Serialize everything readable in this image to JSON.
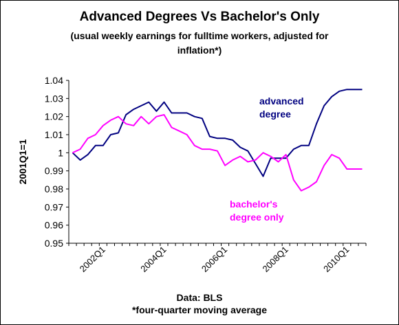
{
  "chart_data": {
    "type": "line",
    "title": "Advanced Degrees Vs Bachelor's Only",
    "subtitle_line1": "(usual weekly earnings for fulltime workers, adjusted for",
    "subtitle_line2": "inflation*)",
    "ylabel": "2001Q1=1",
    "ylim": [
      0.95,
      1.04
    ],
    "yticks": [
      "0.95",
      "0.96",
      "0.97",
      "0.98",
      "0.99",
      "1",
      "1.01",
      "1.02",
      "1.03",
      "1.04"
    ],
    "x": [
      "2001Q1",
      "2001Q2",
      "2001Q3",
      "2001Q4",
      "2002Q1",
      "2002Q2",
      "2002Q3",
      "2002Q4",
      "2003Q1",
      "2003Q2",
      "2003Q3",
      "2003Q4",
      "2004Q1",
      "2004Q2",
      "2004Q3",
      "2004Q4",
      "2005Q1",
      "2005Q2",
      "2005Q3",
      "2005Q4",
      "2006Q1",
      "2006Q2",
      "2006Q3",
      "2006Q4",
      "2007Q1",
      "2007Q2",
      "2007Q3",
      "2007Q4",
      "2008Q1",
      "2008Q2",
      "2008Q3",
      "2008Q4",
      "2009Q1",
      "2009Q2",
      "2009Q3",
      "2009Q4",
      "2010Q1",
      "2010Q2",
      "2010Q3"
    ],
    "xticks": [
      "2002Q1",
      "2004Q1",
      "2006Q1",
      "2008Q1",
      "2010Q1"
    ],
    "series": [
      {
        "name": "advanced degree",
        "label_lines": [
          "advanced",
          "degree"
        ],
        "color": "#000080",
        "values": [
          1.0,
          0.996,
          0.999,
          1.004,
          1.004,
          1.01,
          1.011,
          1.021,
          1.024,
          1.026,
          1.028,
          1.023,
          1.028,
          1.022,
          1.022,
          1.022,
          1.02,
          1.019,
          1.009,
          1.008,
          1.008,
          1.007,
          1.003,
          1.001,
          0.994,
          0.987,
          0.997,
          0.997,
          0.997,
          1.002,
          1.004,
          1.004,
          1.016,
          1.026,
          1.031,
          1.034,
          1.035,
          1.035,
          1.035
        ]
      },
      {
        "name": "bachelor's degree only",
        "label_lines": [
          "bachelor's",
          "degree only"
        ],
        "color": "#ff00ff",
        "values": [
          1.0,
          1.002,
          1.008,
          1.01,
          1.015,
          1.018,
          1.02,
          1.016,
          1.015,
          1.02,
          1.016,
          1.02,
          1.021,
          1.014,
          1.012,
          1.01,
          1.004,
          1.002,
          1.002,
          1.001,
          0.993,
          0.996,
          0.998,
          0.995,
          0.996,
          1.0,
          0.998,
          0.995,
          0.999,
          0.985,
          0.979,
          0.981,
          0.984,
          0.993,
          0.999,
          0.997,
          0.991,
          0.991,
          0.991
        ]
      }
    ],
    "grid": false
  },
  "footer": {
    "source": "Data: BLS",
    "note": "*four-quarter moving average"
  }
}
